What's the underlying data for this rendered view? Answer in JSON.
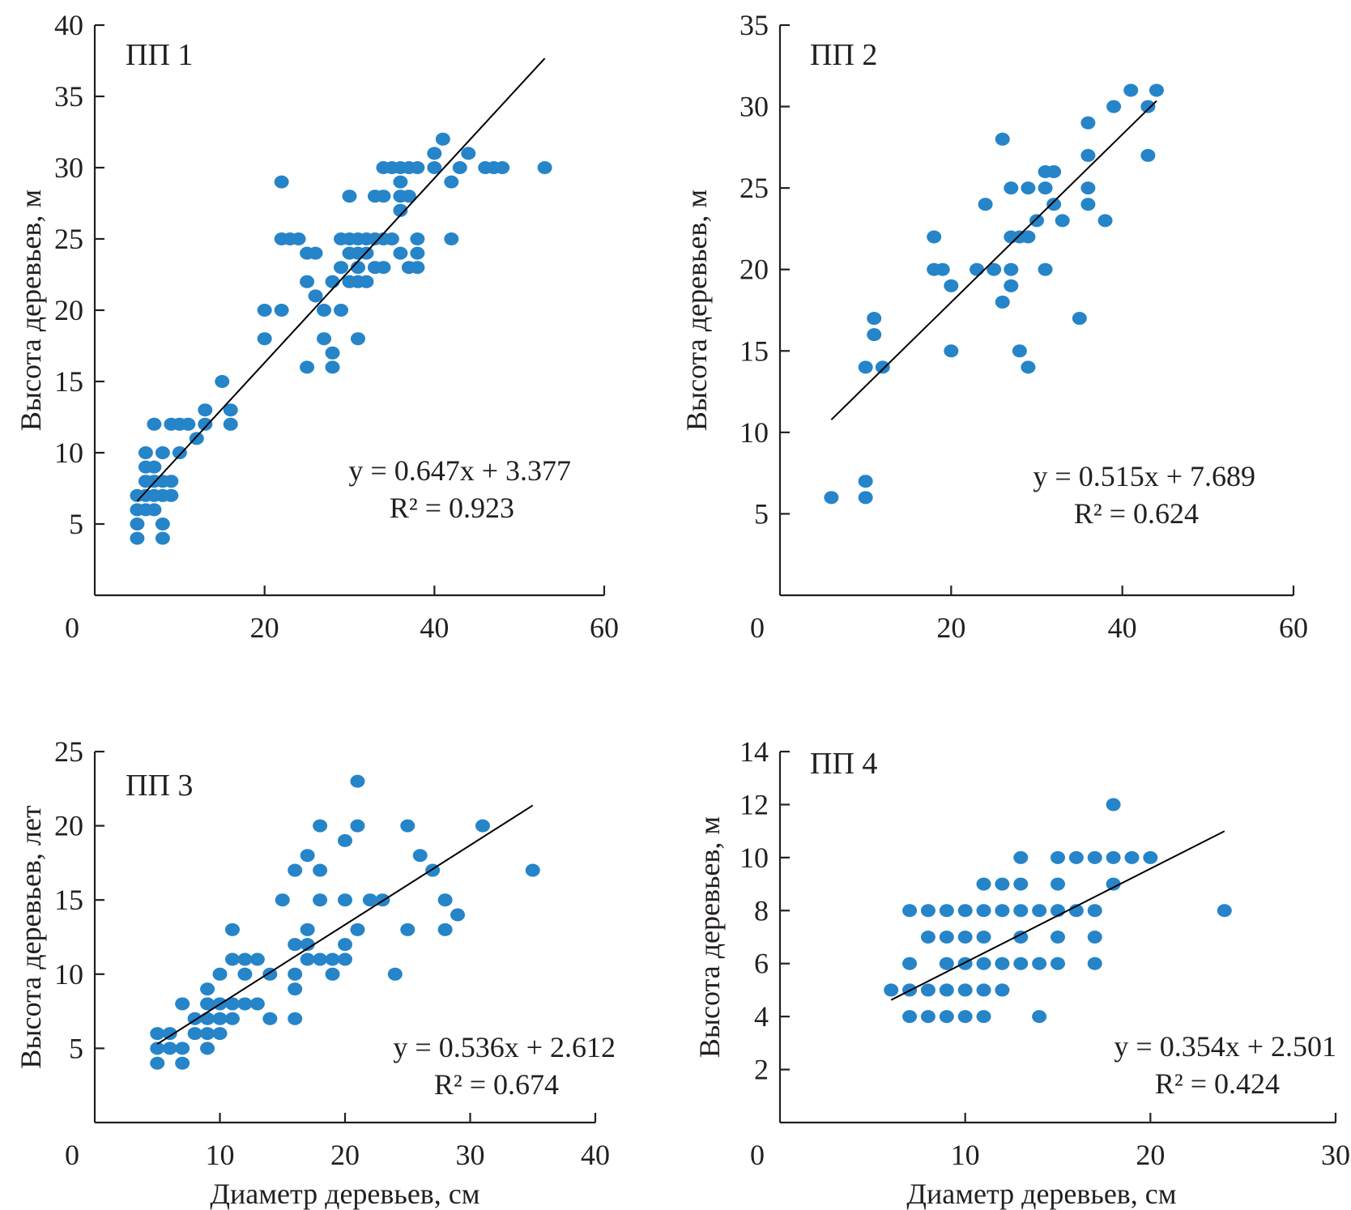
{
  "chart_data": [
    {
      "type": "scatter",
      "title": "ПП 1",
      "xlabel": "",
      "ylabel": "Высота деревьев, м",
      "xlim": [
        0,
        60
      ],
      "ylim": [
        0,
        40
      ],
      "xticks": [
        0,
        20,
        40,
        60
      ],
      "yticks": [
        5,
        10,
        15,
        20,
        25,
        30,
        35,
        40
      ],
      "trendline": {
        "slope": 0.647,
        "intercept": 3.377,
        "x_range": [
          5,
          53
        ]
      },
      "equation": "y = 0.647x + 3.377",
      "r2_label": "R² = 0.923",
      "r2": 0.923,
      "points": [
        [
          5,
          4
        ],
        [
          8,
          4
        ],
        [
          5,
          5
        ],
        [
          8,
          5
        ],
        [
          5,
          6
        ],
        [
          6,
          6
        ],
        [
          7,
          6
        ],
        [
          5,
          7
        ],
        [
          6,
          7
        ],
        [
          7,
          7
        ],
        [
          8,
          7
        ],
        [
          9,
          7
        ],
        [
          6,
          8
        ],
        [
          7,
          8
        ],
        [
          8,
          8
        ],
        [
          9,
          8
        ],
        [
          6,
          9
        ],
        [
          7,
          9
        ],
        [
          6,
          10
        ],
        [
          8,
          10
        ],
        [
          10,
          10
        ],
        [
          7,
          12
        ],
        [
          9,
          12
        ],
        [
          10,
          12
        ],
        [
          11,
          12
        ],
        [
          12,
          11
        ],
        [
          13,
          12
        ],
        [
          13,
          13
        ],
        [
          16,
          12
        ],
        [
          16,
          13
        ],
        [
          15,
          15
        ],
        [
          20,
          18
        ],
        [
          20,
          20
        ],
        [
          22,
          20
        ],
        [
          22,
          29
        ],
        [
          22,
          25
        ],
        [
          23,
          25
        ],
        [
          24,
          25
        ],
        [
          25,
          16
        ],
        [
          25,
          22
        ],
        [
          25,
          24
        ],
        [
          26,
          24
        ],
        [
          26,
          21
        ],
        [
          27,
          20
        ],
        [
          27,
          18
        ],
        [
          28,
          17
        ],
        [
          28,
          16
        ],
        [
          28,
          22
        ],
        [
          29,
          20
        ],
        [
          29,
          23
        ],
        [
          29,
          25
        ],
        [
          30,
          22
        ],
        [
          30,
          24
        ],
        [
          30,
          25
        ],
        [
          30,
          28
        ],
        [
          31,
          22
        ],
        [
          31,
          23
        ],
        [
          31,
          24
        ],
        [
          31,
          25
        ],
        [
          31,
          18
        ],
        [
          32,
          22
        ],
        [
          32,
          24
        ],
        [
          32,
          25
        ],
        [
          33,
          23
        ],
        [
          33,
          25
        ],
        [
          33,
          28
        ],
        [
          34,
          23
        ],
        [
          34,
          28
        ],
        [
          34,
          25
        ],
        [
          34,
          30
        ],
        [
          35,
          30
        ],
        [
          35,
          25
        ],
        [
          36,
          30
        ],
        [
          36,
          29
        ],
        [
          36,
          28
        ],
        [
          36,
          27
        ],
        [
          36,
          24
        ],
        [
          37,
          28
        ],
        [
          37,
          30
        ],
        [
          37,
          23
        ],
        [
          38,
          30
        ],
        [
          38,
          25
        ],
        [
          38,
          24
        ],
        [
          38,
          23
        ],
        [
          40,
          31
        ],
        [
          40,
          30
        ],
        [
          41,
          32
        ],
        [
          42,
          29
        ],
        [
          42,
          25
        ],
        [
          43,
          30
        ],
        [
          44,
          31
        ],
        [
          46,
          30
        ],
        [
          47,
          30
        ],
        [
          48,
          30
        ],
        [
          53,
          30
        ]
      ]
    },
    {
      "type": "scatter",
      "title": "ПП 2",
      "xlabel": "",
      "ylabel": "Высота деревьев, м",
      "xlim": [
        0,
        60
      ],
      "ylim": [
        0,
        35
      ],
      "xticks": [
        0,
        20,
        40,
        60
      ],
      "yticks": [
        5,
        10,
        15,
        20,
        25,
        30,
        35
      ],
      "trendline": {
        "slope": 0.515,
        "intercept": 7.689,
        "x_range": [
          6,
          44
        ]
      },
      "equation": "y = 0.515x + 7.689",
      "r2_label": "R² = 0.624",
      "r2": 0.624,
      "points": [
        [
          6,
          6
        ],
        [
          10,
          6
        ],
        [
          10,
          7
        ],
        [
          10,
          14
        ],
        [
          11,
          16
        ],
        [
          11,
          17
        ],
        [
          12,
          14
        ],
        [
          18,
          22
        ],
        [
          18,
          20
        ],
        [
          19,
          20
        ],
        [
          20,
          19
        ],
        [
          20,
          15
        ],
        [
          23,
          20
        ],
        [
          24,
          24
        ],
        [
          25,
          20
        ],
        [
          26,
          28
        ],
        [
          26,
          18
        ],
        [
          27,
          25
        ],
        [
          27,
          22
        ],
        [
          27,
          20
        ],
        [
          27,
          19
        ],
        [
          28,
          22
        ],
        [
          28,
          15
        ],
        [
          29,
          25
        ],
        [
          29,
          22
        ],
        [
          29,
          14
        ],
        [
          30,
          23
        ],
        [
          31,
          26
        ],
        [
          31,
          25
        ],
        [
          31,
          20
        ],
        [
          32,
          26
        ],
        [
          32,
          24
        ],
        [
          33,
          23
        ],
        [
          35,
          17
        ],
        [
          36,
          29
        ],
        [
          36,
          27
        ],
        [
          36,
          25
        ],
        [
          36,
          24
        ],
        [
          38,
          23
        ],
        [
          39,
          30
        ],
        [
          41,
          31
        ],
        [
          43,
          30
        ],
        [
          43,
          27
        ],
        [
          44,
          31
        ]
      ]
    },
    {
      "type": "scatter",
      "title": "ПП 3",
      "xlabel": "Диаметр деревьев, см",
      "ylabel": "Высота деревьев, лет",
      "xlim": [
        0,
        40
      ],
      "ylim": [
        0,
        25
      ],
      "xticks": [
        0,
        10,
        20,
        30,
        40
      ],
      "yticks": [
        5,
        10,
        15,
        20,
        25
      ],
      "trendline": {
        "slope": 0.536,
        "intercept": 2.612,
        "x_range": [
          5,
          35
        ]
      },
      "equation": "y = 0.536x + 2.612",
      "r2_label": "R² = 0.674",
      "r2": 0.674,
      "points": [
        [
          5,
          4
        ],
        [
          5,
          5
        ],
        [
          5,
          6
        ],
        [
          6,
          5
        ],
        [
          6,
          6
        ],
        [
          7,
          4
        ],
        [
          7,
          5
        ],
        [
          7,
          8
        ],
        [
          8,
          6
        ],
        [
          8,
          7
        ],
        [
          9,
          5
        ],
        [
          9,
          6
        ],
        [
          9,
          7
        ],
        [
          9,
          8
        ],
        [
          9,
          9
        ],
        [
          10,
          6
        ],
        [
          10,
          7
        ],
        [
          10,
          8
        ],
        [
          10,
          10
        ],
        [
          11,
          7
        ],
        [
          11,
          8
        ],
        [
          11,
          11
        ],
        [
          11,
          13
        ],
        [
          12,
          8
        ],
        [
          12,
          10
        ],
        [
          12,
          11
        ],
        [
          13,
          8
        ],
        [
          13,
          11
        ],
        [
          14,
          7
        ],
        [
          14,
          10
        ],
        [
          15,
          15
        ],
        [
          16,
          7
        ],
        [
          16,
          9
        ],
        [
          16,
          10
        ],
        [
          16,
          12
        ],
        [
          16,
          17
        ],
        [
          17,
          11
        ],
        [
          17,
          12
        ],
        [
          17,
          13
        ],
        [
          17,
          18
        ],
        [
          18,
          11
        ],
        [
          18,
          15
        ],
        [
          18,
          17
        ],
        [
          18,
          20
        ],
        [
          19,
          10
        ],
        [
          19,
          11
        ],
        [
          20,
          11
        ],
        [
          20,
          12
        ],
        [
          20,
          15
        ],
        [
          20,
          19
        ],
        [
          21,
          13
        ],
        [
          21,
          20
        ],
        [
          21,
          23
        ],
        [
          22,
          15
        ],
        [
          23,
          15
        ],
        [
          24,
          10
        ],
        [
          25,
          13
        ],
        [
          25,
          20
        ],
        [
          26,
          18
        ],
        [
          27,
          17
        ],
        [
          28,
          13
        ],
        [
          28,
          15
        ],
        [
          29,
          14
        ],
        [
          31,
          20
        ],
        [
          35,
          17
        ]
      ]
    },
    {
      "type": "scatter",
      "title": "ПП 4",
      "xlabel": "Диаметр деревьев, см",
      "ylabel": "Высота деревьев, м",
      "xlim": [
        0,
        30
      ],
      "ylim": [
        0,
        14
      ],
      "xticks": [
        0,
        10,
        20,
        30
      ],
      "yticks": [
        2,
        4,
        6,
        8,
        10,
        12,
        14
      ],
      "trendline": {
        "slope": 0.354,
        "intercept": 2.501,
        "x_range": [
          6,
          24
        ]
      },
      "equation": "y = 0.354x + 2.501",
      "r2_label": "R² = 0.424",
      "r2": 0.424,
      "points": [
        [
          6,
          5
        ],
        [
          7,
          4
        ],
        [
          7,
          5
        ],
        [
          7,
          6
        ],
        [
          7,
          8
        ],
        [
          8,
          4
        ],
        [
          8,
          5
        ],
        [
          8,
          7
        ],
        [
          8,
          8
        ],
        [
          9,
          4
        ],
        [
          9,
          5
        ],
        [
          9,
          6
        ],
        [
          9,
          7
        ],
        [
          9,
          8
        ],
        [
          10,
          4
        ],
        [
          10,
          5
        ],
        [
          10,
          6
        ],
        [
          10,
          7
        ],
        [
          10,
          8
        ],
        [
          11,
          4
        ],
        [
          11,
          5
        ],
        [
          11,
          6
        ],
        [
          11,
          7
        ],
        [
          11,
          8
        ],
        [
          11,
          9
        ],
        [
          12,
          5
        ],
        [
          12,
          6
        ],
        [
          12,
          8
        ],
        [
          12,
          9
        ],
        [
          13,
          6
        ],
        [
          13,
          7
        ],
        [
          13,
          8
        ],
        [
          13,
          9
        ],
        [
          13,
          10
        ],
        [
          14,
          4
        ],
        [
          14,
          6
        ],
        [
          14,
          8
        ],
        [
          15,
          6
        ],
        [
          15,
          7
        ],
        [
          15,
          8
        ],
        [
          15,
          9
        ],
        [
          15,
          10
        ],
        [
          16,
          8
        ],
        [
          16,
          10
        ],
        [
          17,
          6
        ],
        [
          17,
          7
        ],
        [
          17,
          8
        ],
        [
          17,
          10
        ],
        [
          18,
          9
        ],
        [
          18,
          10
        ],
        [
          18,
          12
        ],
        [
          19,
          10
        ],
        [
          20,
          10
        ],
        [
          24,
          8
        ]
      ]
    }
  ]
}
